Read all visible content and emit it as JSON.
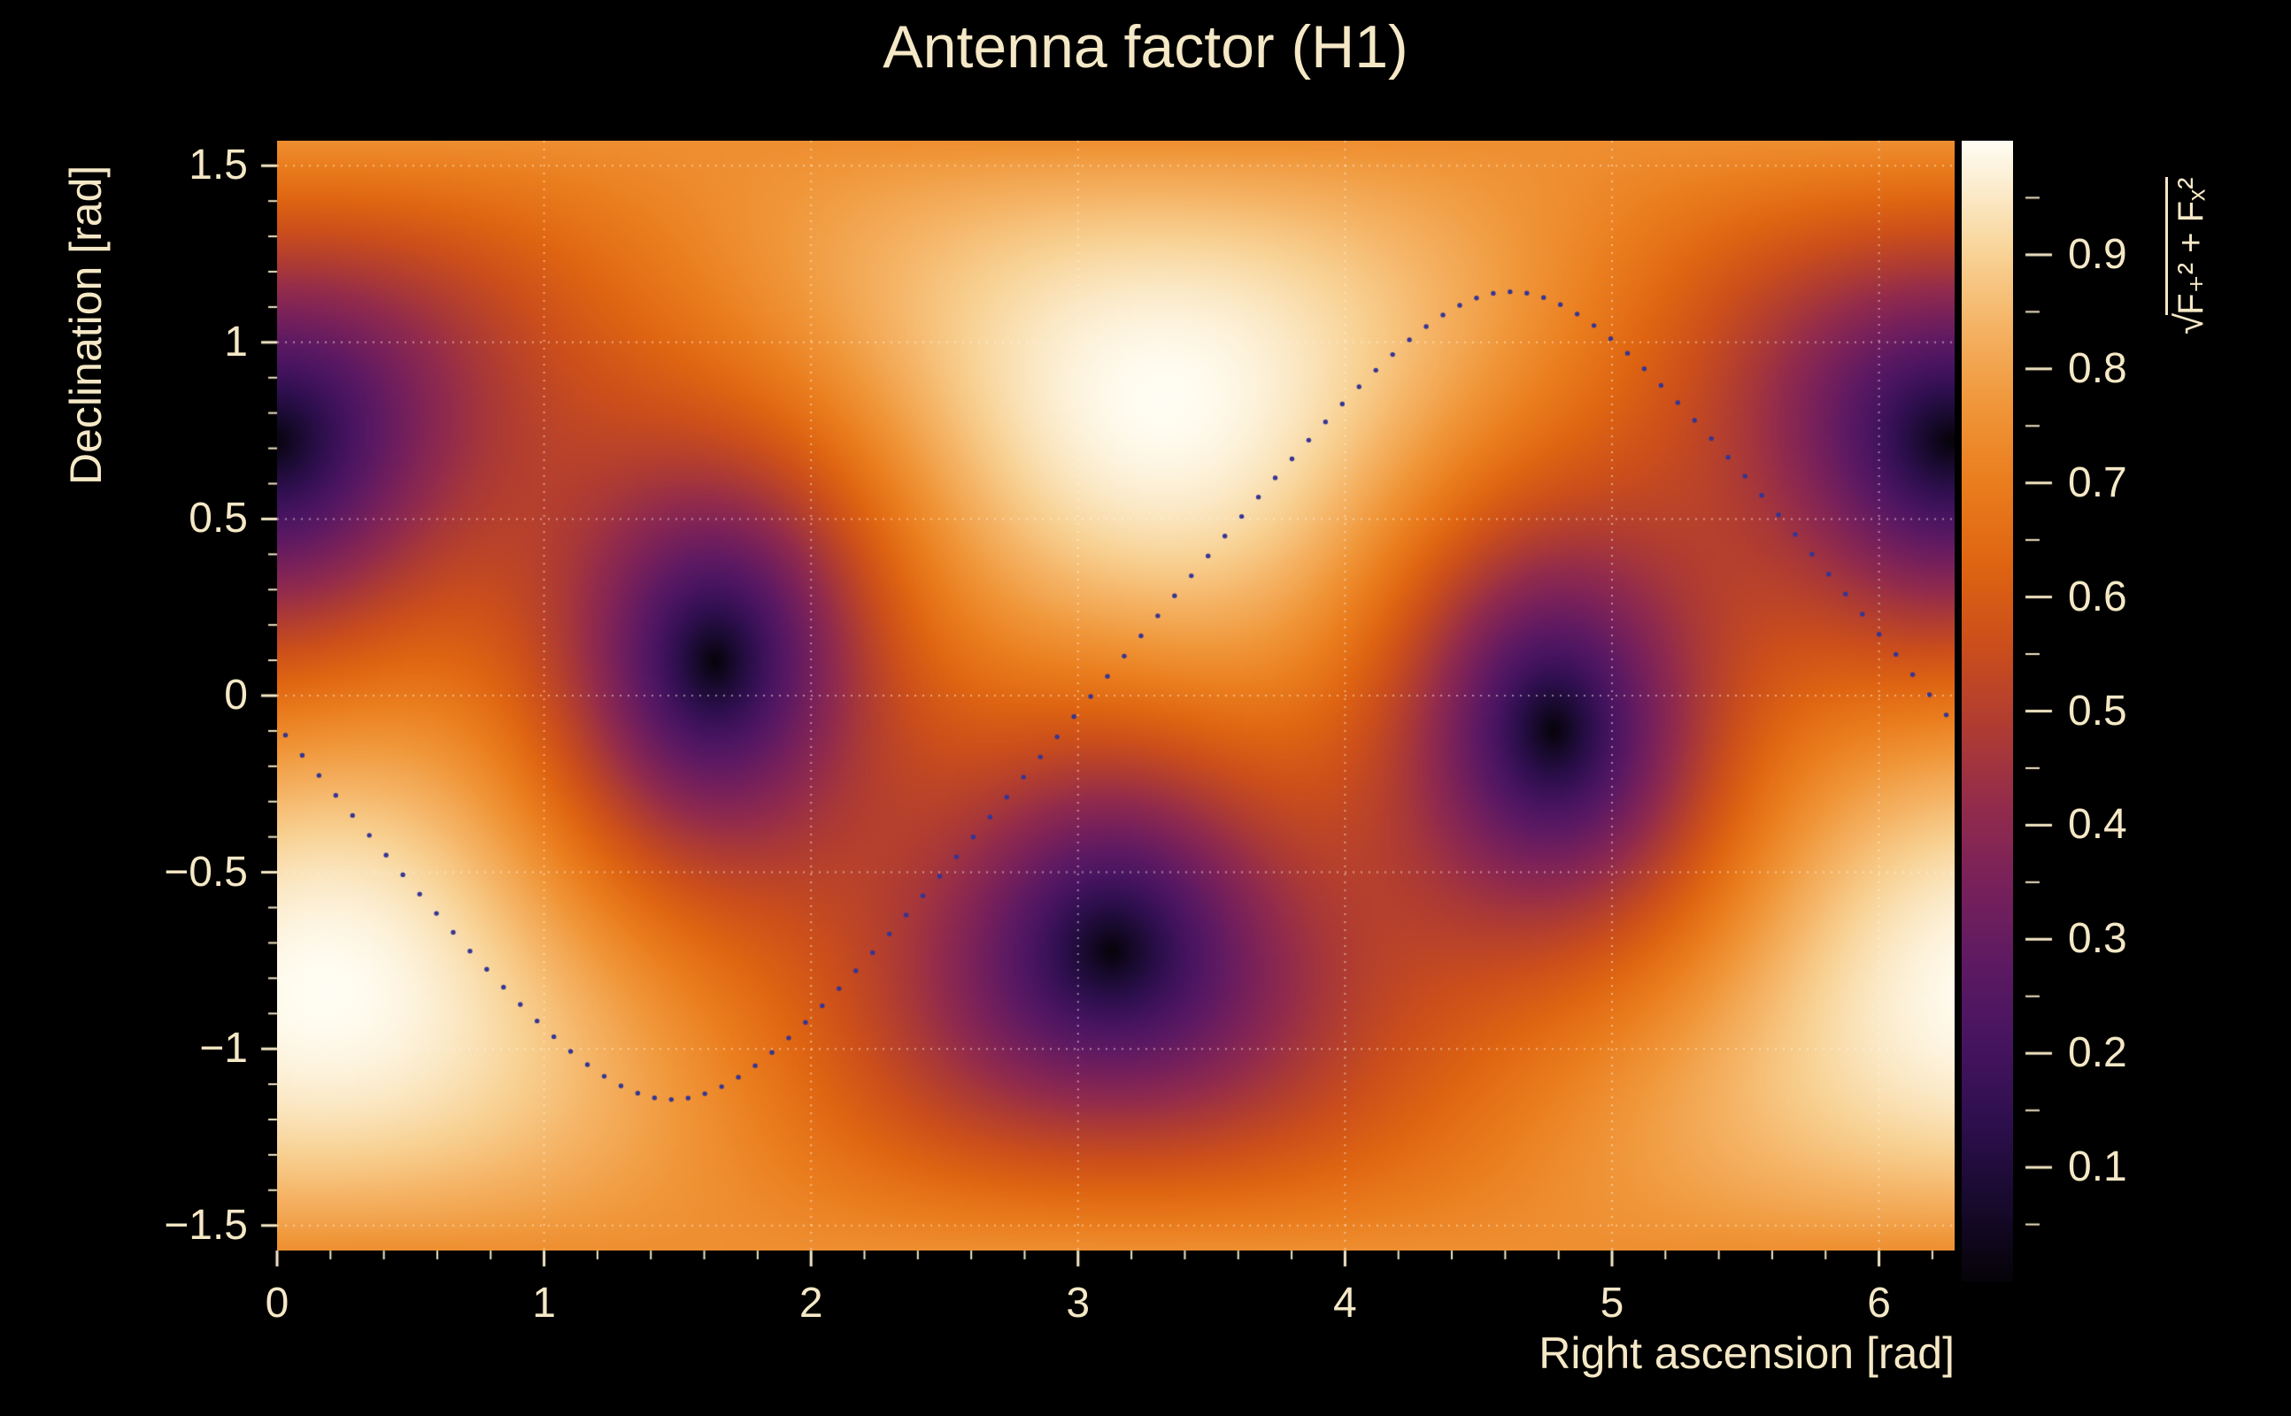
{
  "figure": {
    "background": "#000000",
    "text_color": "#f5e8c6"
  },
  "chart_data": {
    "type": "heatmap",
    "title": "Antenna factor (H1)",
    "xlabel": "Right ascension [rad]",
    "ylabel": "Declination [rad]",
    "zlabel": {
      "sqrt": "√",
      "arg": "F₊² + Fₓ²",
      "plain": "sqrt(F+^2 + Fx^2)"
    },
    "x_range": [
      0,
      6.2832
    ],
    "y_range": [
      -1.5708,
      1.5708
    ],
    "z_range": [
      0,
      1
    ],
    "x_ticks": [
      0,
      1,
      2,
      3,
      4,
      5,
      6
    ],
    "y_ticks": [
      -1.5,
      -1,
      -0.5,
      0,
      0.5,
      1,
      1.5
    ],
    "x_minor_tick_step": 0.2,
    "y_minor_tick_step": 0.1,
    "colorbar_ticks": [
      0.1,
      0.2,
      0.3,
      0.4,
      0.5,
      0.6,
      0.7,
      0.8,
      0.9
    ],
    "colorbar_minor_tick_step": 0.05,
    "grid": true,
    "style": {
      "grid_color": "rgba(255,250,235,0.5)",
      "tick_color": "#f5e8c6",
      "axis_text_color": "#f5e8c6"
    },
    "antenna_pattern": {
      "detector": "H1",
      "quantity": "sqrt(Fplus^2 + Fcross^2)",
      "zenith_ra": 3.32,
      "zenith_dec": 0.84,
      "arm_bisector_azimuth": 0.64,
      "maxima_radec": [
        [
          3.32,
          0.84
        ],
        [
          0.18,
          -0.84
        ]
      ],
      "nulls_radec": [
        [
          1.62,
          0.1
        ],
        [
          4.76,
          -0.1
        ],
        [
          6.24,
          0.76
        ],
        [
          3.1,
          -0.76
        ]
      ]
    },
    "overlay_curve": {
      "style": "dotted",
      "color": "#353594",
      "model": "dec = asin(k * sin(ra - node_ra))",
      "k": 0.91,
      "node_ra": 3.05,
      "points": 100
    },
    "colormap": {
      "name": "dark-body-radiator",
      "stops": [
        [
          0.0,
          "#060309"
        ],
        [
          0.07,
          "#180a2e"
        ],
        [
          0.14,
          "#2e0f4e"
        ],
        [
          0.21,
          "#471460"
        ],
        [
          0.28,
          "#5e1a62"
        ],
        [
          0.35,
          "#79215a"
        ],
        [
          0.42,
          "#942c4b"
        ],
        [
          0.49,
          "#b13d31"
        ],
        [
          0.56,
          "#cc4f1b"
        ],
        [
          0.63,
          "#df6512"
        ],
        [
          0.7,
          "#ea7d1e"
        ],
        [
          0.77,
          "#f0973a"
        ],
        [
          0.84,
          "#f5b466"
        ],
        [
          0.9,
          "#f8d294"
        ],
        [
          0.95,
          "#fbe8c4"
        ],
        [
          1.0,
          "#fffdf3"
        ]
      ]
    }
  }
}
